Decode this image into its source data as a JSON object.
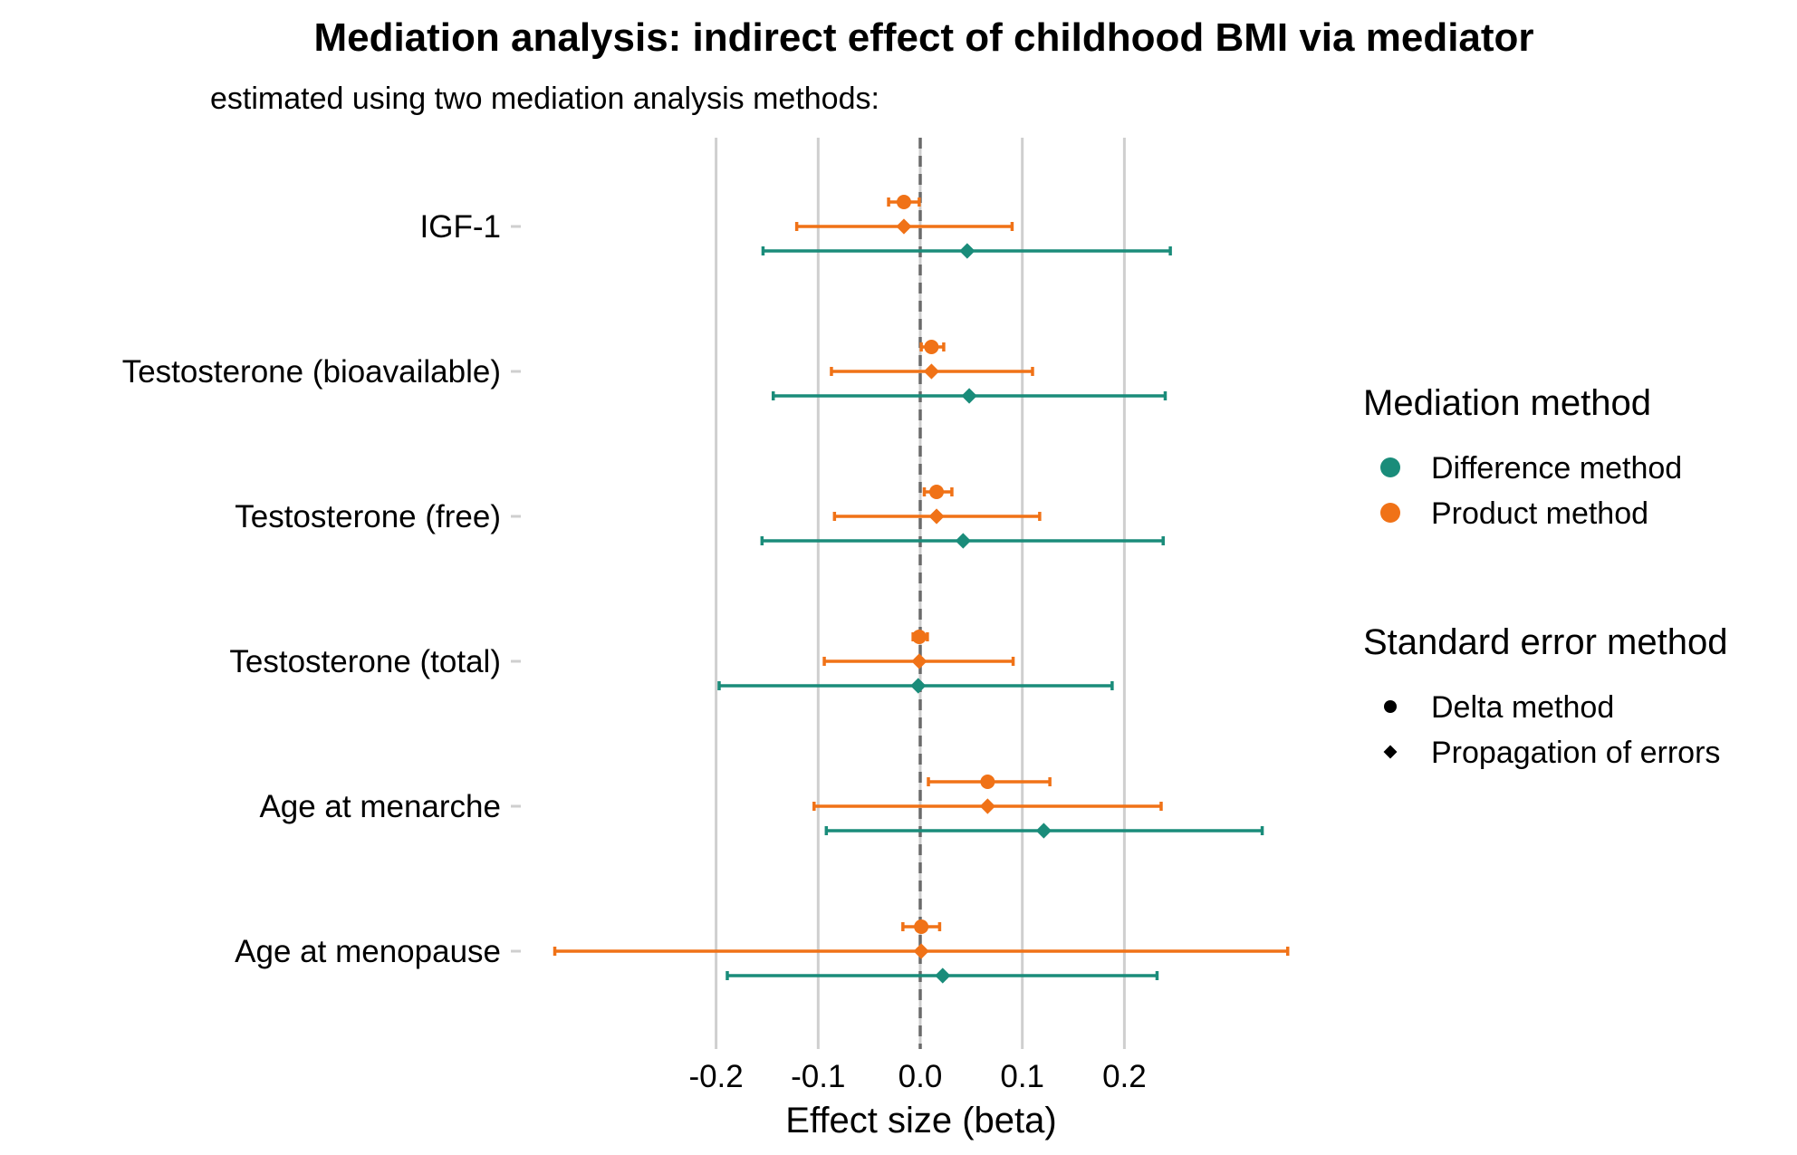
{
  "chart_data": {
    "type": "forest",
    "title": "Mediation analysis: indirect effect of childhood BMI via mediator",
    "subtitle": "estimated using two mediation analysis methods:",
    "xlabel": "Effect size (beta)",
    "xticks": [
      "-0.2",
      "-0.1",
      "0.0",
      "0.1",
      "0.2"
    ],
    "xtick_values": [
      -0.2,
      -0.1,
      0.0,
      0.1,
      0.2
    ],
    "xlim": [
      -0.37,
      0.39
    ],
    "reference_line": 0.0,
    "categories": [
      "IGF-1",
      "Testosterone (bioavailable)",
      "Testosterone (free)",
      "Testosterone (total)",
      "Age at menarche",
      "Age at menopause"
    ],
    "series": [
      {
        "mediation": "Product method",
        "se_method": "Delta method",
        "color": "#F07217",
        "marker": "circle",
        "estimates": [
          -0.016,
          0.011,
          0.016,
          -0.001,
          0.066,
          0.001
        ],
        "lower": [
          -0.031,
          0.001,
          0.004,
          -0.007,
          0.008,
          -0.017
        ],
        "upper": [
          -0.001,
          0.023,
          0.031,
          0.007,
          0.127,
          0.019
        ]
      },
      {
        "mediation": "Product method",
        "se_method": "Propagation of errors",
        "color": "#F07217",
        "marker": "diamond",
        "estimates": [
          -0.016,
          0.011,
          0.016,
          -0.001,
          0.066,
          0.001
        ],
        "lower": [
          -0.121,
          -0.087,
          -0.084,
          -0.094,
          -0.104,
          -0.358
        ],
        "upper": [
          0.09,
          0.11,
          0.117,
          0.091,
          0.236,
          0.36
        ]
      },
      {
        "mediation": "Difference method",
        "se_method": "Propagation of errors",
        "color": "#1A8C7A",
        "marker": "diamond",
        "estimates": [
          0.046,
          0.048,
          0.042,
          -0.002,
          0.121,
          0.022
        ],
        "lower": [
          -0.154,
          -0.144,
          -0.155,
          -0.197,
          -0.092,
          -0.189
        ],
        "upper": [
          0.245,
          0.24,
          0.238,
          0.188,
          0.335,
          0.232
        ]
      }
    ],
    "legend": {
      "position": "right",
      "groups": [
        {
          "title": "Mediation method",
          "items": [
            {
              "label": "Difference method",
              "color": "#1A8C7A",
              "marker": "circle"
            },
            {
              "label": "Product method",
              "color": "#F07217",
              "marker": "circle"
            }
          ]
        },
        {
          "title": "Standard error method",
          "items": [
            {
              "label": "Delta method",
              "color": "#000000",
              "marker": "circle"
            },
            {
              "label": "Propagation of errors",
              "color": "#000000",
              "marker": "diamond"
            }
          ]
        }
      ]
    },
    "grid": true
  }
}
